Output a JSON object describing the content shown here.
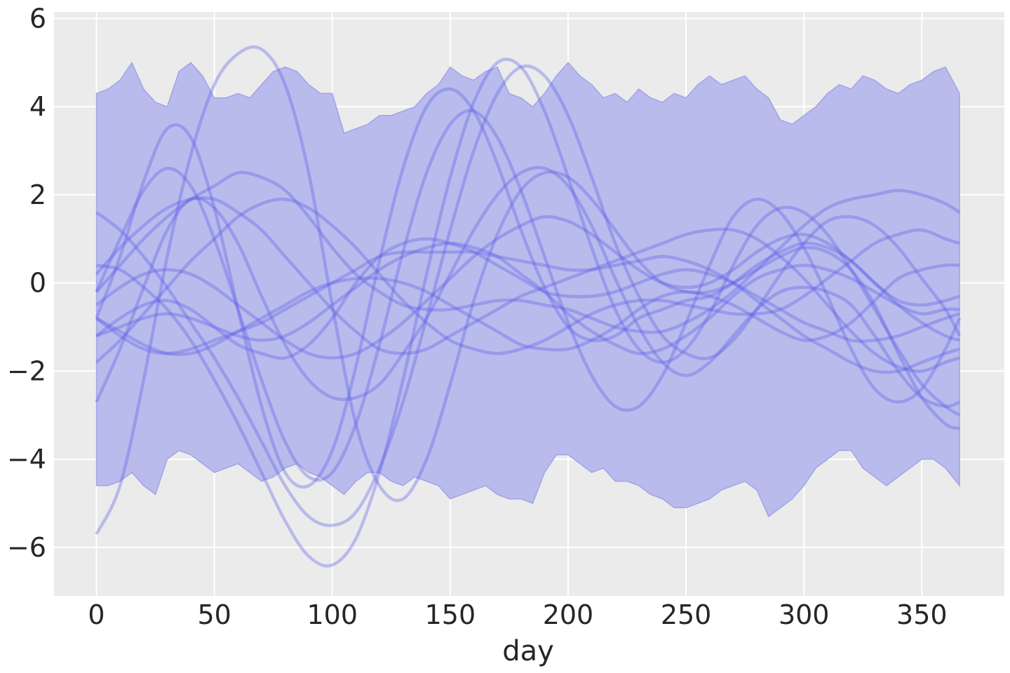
{
  "chart_data": {
    "type": "line",
    "title": "",
    "xlabel": "day",
    "ylabel": "",
    "xlim": [
      -18,
      385
    ],
    "ylim": [
      -7.1,
      6.15
    ],
    "xticks": [
      0,
      50,
      100,
      150,
      200,
      250,
      300,
      350
    ],
    "yticks": [
      -6,
      -4,
      -2,
      0,
      2,
      4,
      6
    ],
    "grid": true,
    "legend": "none",
    "colors": {
      "background": "#ebebeb",
      "band_fill": "#b9bbec",
      "band_edge": "#8e91e6",
      "line": "#5b5ee8"
    },
    "band": {
      "x": [
        0,
        5,
        10,
        15,
        20,
        25,
        30,
        35,
        40,
        45,
        50,
        55,
        60,
        65,
        70,
        75,
        80,
        85,
        90,
        95,
        100,
        105,
        110,
        115,
        120,
        125,
        130,
        135,
        140,
        145,
        150,
        155,
        160,
        165,
        170,
        175,
        180,
        185,
        190,
        195,
        200,
        205,
        210,
        215,
        220,
        225,
        230,
        235,
        240,
        245,
        250,
        255,
        260,
        265,
        270,
        275,
        280,
        285,
        290,
        295,
        300,
        305,
        310,
        315,
        320,
        325,
        330,
        335,
        340,
        345,
        350,
        355,
        360,
        366
      ],
      "upper": [
        4.3,
        4.4,
        4.6,
        5.0,
        4.4,
        4.1,
        4.0,
        4.8,
        5.0,
        4.7,
        4.2,
        4.2,
        4.3,
        4.2,
        4.5,
        4.8,
        4.9,
        4.8,
        4.5,
        4.3,
        4.3,
        3.4,
        3.5,
        3.6,
        3.8,
        3.8,
        3.9,
        4.0,
        4.3,
        4.5,
        4.9,
        4.7,
        4.6,
        4.8,
        4.9,
        4.3,
        4.2,
        4.0,
        4.3,
        4.7,
        5.0,
        4.7,
        4.5,
        4.2,
        4.3,
        4.1,
        4.4,
        4.2,
        4.1,
        4.3,
        4.2,
        4.5,
        4.7,
        4.5,
        4.6,
        4.7,
        4.4,
        4.2,
        3.7,
        3.6,
        3.8,
        4.0,
        4.3,
        4.5,
        4.4,
        4.7,
        4.6,
        4.4,
        4.3,
        4.5,
        4.6,
        4.8,
        4.9,
        4.3
      ],
      "lower": [
        -4.6,
        -4.6,
        -4.5,
        -4.3,
        -4.6,
        -4.8,
        -4.0,
        -3.8,
        -3.9,
        -4.1,
        -4.3,
        -4.2,
        -4.1,
        -4.3,
        -4.5,
        -4.4,
        -4.2,
        -4.1,
        -4.3,
        -4.4,
        -4.6,
        -4.8,
        -4.5,
        -4.3,
        -4.3,
        -4.5,
        -4.6,
        -4.4,
        -4.5,
        -4.6,
        -4.9,
        -4.8,
        -4.7,
        -4.6,
        -4.8,
        -4.9,
        -4.9,
        -5.0,
        -4.3,
        -3.9,
        -3.9,
        -4.1,
        -4.3,
        -4.2,
        -4.5,
        -4.5,
        -4.6,
        -4.8,
        -4.9,
        -5.1,
        -5.1,
        -5.0,
        -4.9,
        -4.7,
        -4.6,
        -4.5,
        -4.7,
        -5.3,
        -5.1,
        -4.9,
        -4.6,
        -4.2,
        -4.0,
        -3.8,
        -3.8,
        -4.2,
        -4.4,
        -4.6,
        -4.4,
        -4.2,
        -4.0,
        -4.0,
        -4.2,
        -4.6
      ]
    },
    "lines_x": [
      0,
      10,
      20,
      30,
      40,
      50,
      60,
      70,
      80,
      90,
      100,
      110,
      120,
      130,
      140,
      150,
      160,
      170,
      180,
      190,
      200,
      210,
      220,
      230,
      240,
      250,
      260,
      270,
      280,
      290,
      300,
      310,
      320,
      330,
      340,
      350,
      360,
      366
    ],
    "series": [
      {
        "values": [
          -5.7,
          -4.6,
          -2.2,
          0.6,
          2.9,
          4.5,
          5.2,
          5.3,
          4.5,
          2.5,
          -0.5,
          -3.2,
          -4.6,
          -4.9,
          -4.0,
          -2.3,
          -0.4,
          1.1,
          2.1,
          2.5,
          2.4,
          1.9,
          1.2,
          0.5,
          0.0,
          -0.2,
          -0.2,
          0.0,
          0.3,
          0.6,
          0.8,
          0.7,
          0.3,
          -0.5,
          -1.6,
          -2.6,
          -3.2,
          -3.3
        ]
      },
      {
        "values": [
          -0.8,
          0.6,
          2.3,
          3.5,
          3.3,
          1.7,
          -0.6,
          -2.8,
          -4.3,
          -4.6,
          -3.8,
          -1.9,
          0.5,
          2.6,
          4.0,
          4.4,
          3.9,
          2.7,
          1.2,
          -0.1,
          -1.0,
          -1.3,
          -1.2,
          -0.8,
          -0.6,
          -0.4,
          -0.3,
          0.0,
          0.4,
          0.7,
          0.9,
          0.8,
          0.5,
          0.0,
          -0.4,
          -0.5,
          -0.4,
          -0.3
        ]
      },
      {
        "values": [
          -0.2,
          1.0,
          2.1,
          2.6,
          2.2,
          1.0,
          -0.6,
          -2.2,
          -3.6,
          -4.4,
          -4.3,
          -3.2,
          -1.4,
          0.7,
          2.5,
          3.6,
          3.9,
          3.3,
          2.1,
          0.6,
          -0.9,
          -2.1,
          -2.8,
          -2.8,
          -2.1,
          -0.9,
          0.4,
          1.5,
          1.9,
          1.6,
          0.8,
          -0.3,
          -1.5,
          -2.4,
          -2.7,
          -2.4,
          -1.5,
          -0.8
        ]
      },
      {
        "values": [
          -2.7,
          -1.5,
          -0.1,
          1.2,
          1.9,
          1.7,
          0.9,
          -0.3,
          -1.4,
          -2.2,
          -2.6,
          -2.6,
          -2.3,
          -1.6,
          -0.8,
          0.2,
          1.2,
          2.0,
          2.5,
          2.6,
          2.2,
          1.3,
          0.1,
          -1.0,
          -1.8,
          -2.1,
          -1.8,
          -1.2,
          -0.6,
          -0.2,
          -0.1,
          -0.2,
          -0.5,
          -1.2,
          -2.0,
          -2.6,
          -2.8,
          -2.7
        ]
      },
      {
        "values": [
          1.6,
          1.2,
          0.6,
          -0.1,
          -0.9,
          -1.7,
          -2.6,
          -3.6,
          -4.6,
          -5.3,
          -5.5,
          -5.2,
          -4.2,
          -2.7,
          -0.8,
          1.2,
          3.0,
          4.3,
          4.9,
          4.7,
          3.8,
          2.4,
          0.9,
          -0.3,
          -1.2,
          -1.6,
          -1.7,
          -1.3,
          -0.6,
          0.2,
          0.9,
          1.4,
          1.5,
          1.3,
          0.8,
          0.1,
          -0.6,
          -1.2
        ]
      },
      {
        "values": [
          0.4,
          0.3,
          -0.1,
          -0.6,
          -1.3,
          -2.2,
          -3.2,
          -4.3,
          -5.4,
          -6.2,
          -6.4,
          -5.8,
          -4.3,
          -2.2,
          0.2,
          2.4,
          4.1,
          5.0,
          4.9,
          3.9,
          2.4,
          0.8,
          -0.6,
          -1.5,
          -1.8,
          -1.5,
          -0.7,
          0.4,
          1.3,
          1.7,
          1.6,
          1.1,
          0.3,
          -0.6,
          -1.5,
          -2.3,
          -2.8,
          -3.0
        ]
      },
      {
        "values": [
          -1.2,
          -0.8,
          -0.5,
          -0.4,
          -0.6,
          -1.0,
          -1.4,
          -1.6,
          -1.7,
          -1.4,
          -0.8,
          0.0,
          0.6,
          0.9,
          1.0,
          0.9,
          0.7,
          0.4,
          0.1,
          -0.2,
          -0.3,
          -0.3,
          -0.2,
          0.0,
          0.2,
          0.3,
          0.2,
          0.0,
          -0.3,
          -0.6,
          -0.9,
          -1.1,
          -1.3,
          -1.3,
          -1.2,
          -1.0,
          -0.8,
          -0.7
        ]
      },
      {
        "values": [
          0.2,
          0.8,
          1.3,
          1.7,
          1.9,
          1.9,
          1.6,
          1.2,
          0.6,
          0.0,
          -0.6,
          -1.1,
          -1.5,
          -1.6,
          -1.5,
          -1.2,
          -0.9,
          -0.6,
          -0.3,
          -0.1,
          0.1,
          0.3,
          0.5,
          0.7,
          0.9,
          1.1,
          1.2,
          1.2,
          1.0,
          0.6,
          0.1,
          -0.5,
          -1.1,
          -1.6,
          -1.9,
          -2.0,
          -1.8,
          -1.7
        ]
      },
      {
        "values": [
          -0.8,
          -1.2,
          -1.5,
          -1.6,
          -1.5,
          -1.3,
          -1.1,
          -0.9,
          -0.6,
          -0.3,
          0.0,
          0.3,
          0.6,
          0.7,
          0.7,
          0.7,
          0.7,
          0.6,
          0.5,
          0.4,
          0.3,
          0.3,
          0.4,
          0.5,
          0.6,
          0.5,
          0.3,
          0.0,
          -0.4,
          -0.8,
          -1.2,
          -1.5,
          -1.8,
          -2.0,
          -2.0,
          -1.8,
          -1.6,
          -1.5
        ]
      },
      {
        "values": [
          -1.8,
          -1.3,
          -0.7,
          -0.1,
          0.5,
          1.0,
          1.5,
          1.8,
          1.9,
          1.7,
          1.3,
          0.8,
          0.2,
          -0.4,
          -0.9,
          -1.3,
          -1.5,
          -1.6,
          -1.5,
          -1.3,
          -1.0,
          -0.7,
          -0.5,
          -0.4,
          -0.4,
          -0.5,
          -0.6,
          -0.7,
          -0.7,
          -0.6,
          -0.3,
          0.1,
          0.5,
          0.9,
          1.1,
          1.2,
          1.0,
          0.9
        ]
      },
      {
        "values": [
          -0.2,
          0.4,
          1.0,
          1.5,
          1.9,
          2.2,
          2.5,
          2.4,
          2.1,
          1.5,
          0.8,
          0.2,
          -0.2,
          -0.5,
          -0.6,
          -0.6,
          -0.5,
          -0.4,
          -0.4,
          -0.5,
          -0.6,
          -0.8,
          -1.0,
          -1.1,
          -1.1,
          -0.9,
          -0.6,
          -0.2,
          0.3,
          0.8,
          1.3,
          1.7,
          1.9,
          2.0,
          2.1,
          2.0,
          1.8,
          1.6
        ]
      },
      {
        "values": [
          -0.8,
          -1.1,
          -1.4,
          -1.6,
          -1.6,
          -1.4,
          -1.1,
          -0.8,
          -0.5,
          -0.2,
          0.0,
          0.1,
          0.1,
          0.0,
          -0.2,
          -0.5,
          -0.8,
          -1.1,
          -1.4,
          -1.5,
          -1.5,
          -1.3,
          -1.0,
          -0.6,
          -0.3,
          -0.2,
          -0.3,
          -0.5,
          -0.8,
          -1.1,
          -1.3,
          -1.2,
          -0.9,
          -0.4,
          0.1,
          0.3,
          0.4,
          0.4
        ]
      },
      {
        "values": [
          -1.2,
          -1.0,
          -0.8,
          -0.7,
          -0.8,
          -1.0,
          -1.2,
          -1.3,
          -1.2,
          -0.9,
          -0.5,
          -0.1,
          0.3,
          0.6,
          0.8,
          0.9,
          0.8,
          0.6,
          0.2,
          -0.2,
          -0.7,
          -1.1,
          -1.4,
          -1.6,
          -1.5,
          -1.2,
          -0.8,
          -0.3,
          0.1,
          0.3,
          0.4,
          0.3,
          0.1,
          -0.2,
          -0.5,
          -0.7,
          -0.6,
          -0.6
        ]
      },
      {
        "values": [
          -0.5,
          -0.1,
          0.2,
          0.3,
          0.2,
          -0.1,
          -0.5,
          -0.9,
          -1.3,
          -1.6,
          -1.7,
          -1.6,
          -1.3,
          -0.9,
          -0.4,
          0.1,
          0.6,
          1.0,
          1.3,
          1.5,
          1.4,
          1.1,
          0.7,
          0.3,
          0.0,
          -0.1,
          0.0,
          0.3,
          0.7,
          1.0,
          1.1,
          0.9,
          0.5,
          0.0,
          -0.5,
          -0.9,
          -1.2,
          -1.3
        ]
      }
    ]
  }
}
